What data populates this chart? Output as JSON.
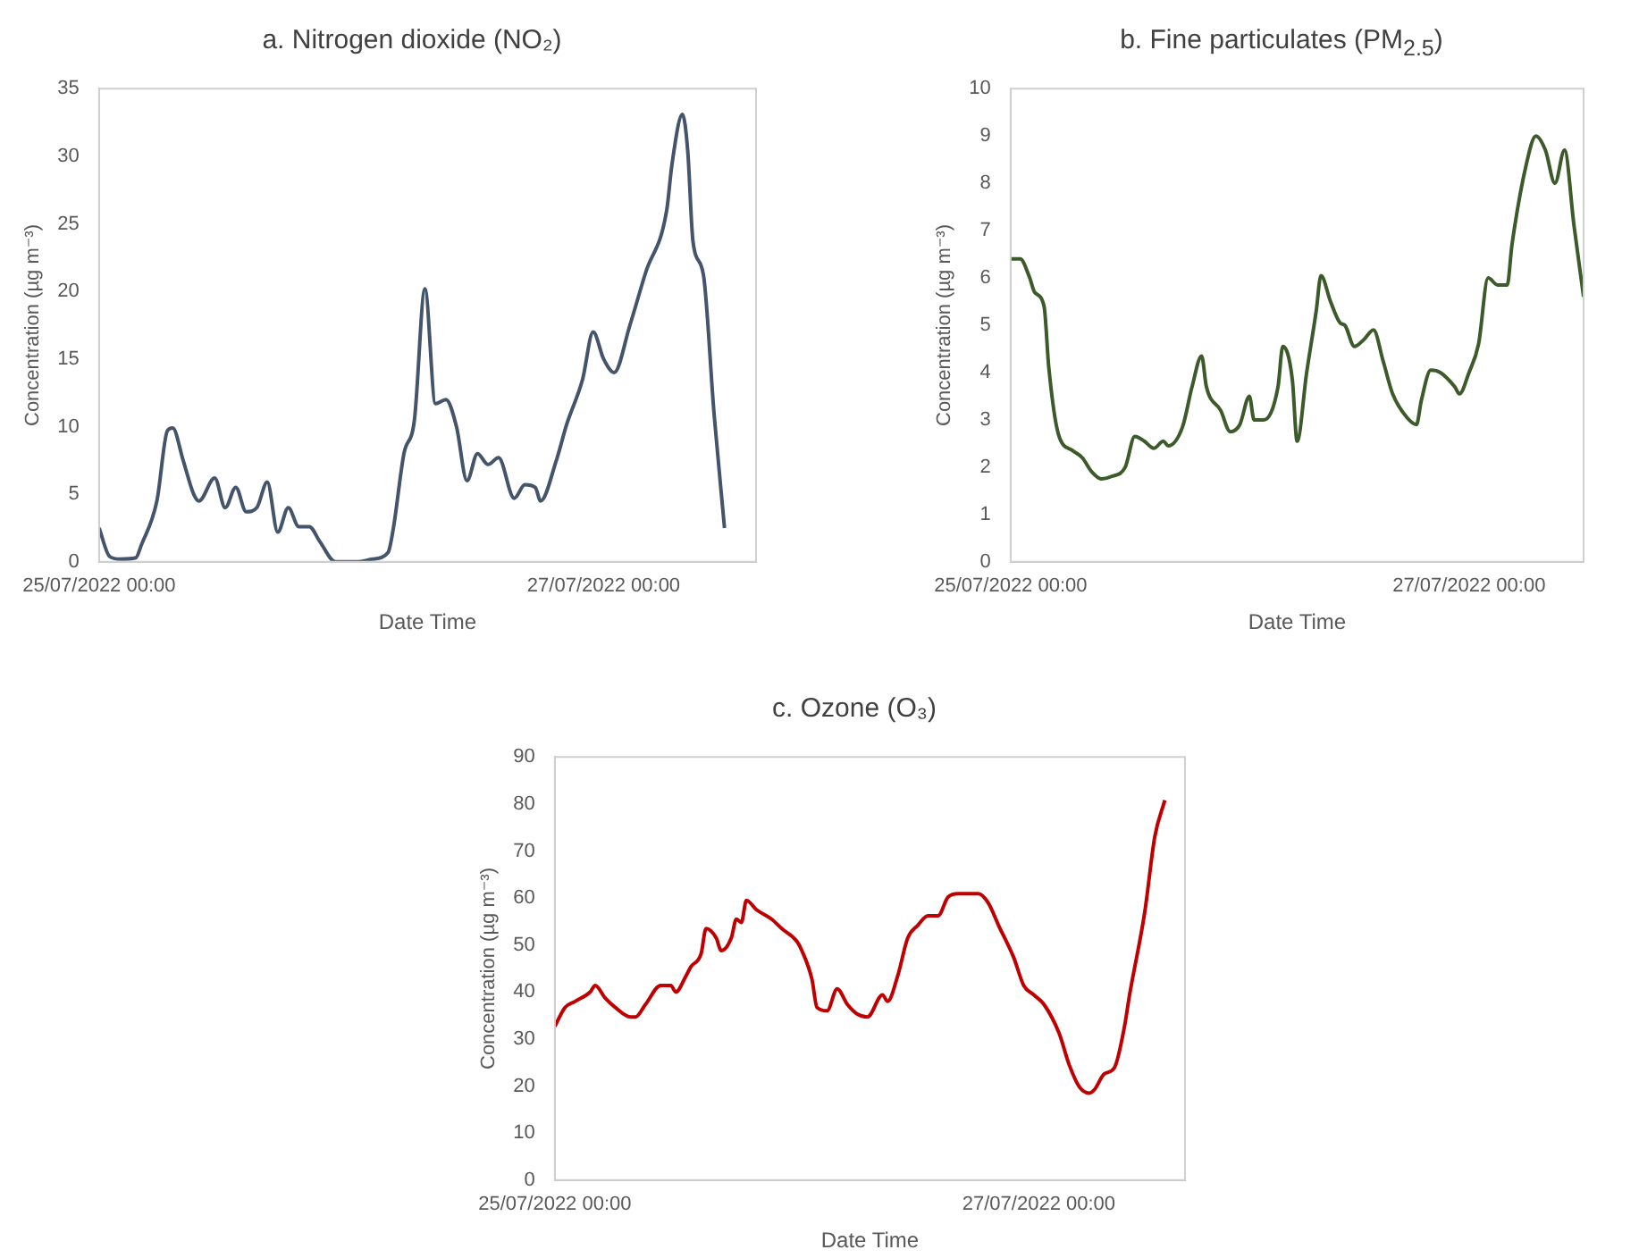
{
  "chart_data": [
    {
      "type": "line",
      "title": "a. Nitrogen dioxide (NO₂)",
      "xlabel": "Date Time",
      "ylabel": "Concentration (µg m⁻³)",
      "marker": "none",
      "line_style": "solid",
      "xlim": [
        "2022-07-25T00:00",
        "2022-07-27T14:30"
      ],
      "ylim": [
        0,
        35
      ],
      "xticks": [
        {
          "value": "2022-07-25T00:00",
          "label": "25/07/2022 00:00"
        },
        {
          "value": "2022-07-27T00:00",
          "label": "27/07/2022 00:00"
        }
      ],
      "yticks": [
        0,
        5,
        10,
        15,
        20,
        25,
        30,
        35
      ],
      "series": [
        {
          "color": "#44546a",
          "x": [
            "2022-07-25T00:00",
            "2022-07-25T01:00",
            "2022-07-25T02:00",
            "2022-07-25T03:30",
            "2022-07-25T04:00",
            "2022-07-25T05:30",
            "2022-07-25T06:30",
            "2022-07-25T07:00",
            "2022-07-25T08:00",
            "2022-07-25T09:00",
            "2022-07-25T09:30",
            "2022-07-25T11:00",
            "2022-07-25T12:00",
            "2022-07-25T13:00",
            "2022-07-25T14:00",
            "2022-07-25T15:00",
            "2022-07-25T16:00",
            "2022-07-25T17:00",
            "2022-07-25T18:00",
            "2022-07-25T19:00",
            "2022-07-25T20:00",
            "2022-07-25T21:00",
            "2022-07-25T22:30",
            "2022-07-26T00:30",
            "2022-07-26T02:00",
            "2022-07-26T03:30",
            "2022-07-26T04:00",
            "2022-07-26T05:00",
            "2022-07-26T06:00",
            "2022-07-26T07:00",
            "2022-07-26T08:00",
            "2022-07-26T09:00",
            "2022-07-26T10:00",
            "2022-07-26T11:00",
            "2022-07-26T12:00",
            "2022-07-26T13:00",
            "2022-07-26T14:00",
            "2022-07-26T15:30",
            "2022-07-26T16:30",
            "2022-07-26T17:30",
            "2022-07-26T18:00",
            "2022-07-26T19:30",
            "2022-07-26T20:30",
            "2022-07-26T22:00",
            "2022-07-26T23:00",
            "2022-07-27T00:00",
            "2022-07-27T01:00",
            "2022-07-27T02:30",
            "2022-07-27T04:00",
            "2022-07-27T06:00",
            "2022-07-27T06:30",
            "2022-07-27T07:30",
            "2022-07-27T08:00",
            "2022-07-27T08:30",
            "2022-07-27T09:30",
            "2022-07-27T10:30",
            "2022-07-27T11:30"
          ],
          "values": [
            2.5,
            0.4,
            0.2,
            0.3,
            1.2,
            4.5,
            9.7,
            9.9,
            7.5,
            5,
            4.5,
            6.2,
            4,
            5.5,
            3.7,
            4,
            5.9,
            2.2,
            4,
            2.6,
            2.6,
            1.5,
            0,
            0,
            0.2,
            0.7,
            2.5,
            8,
            10.5,
            20.2,
            11.7,
            12,
            10,
            6,
            8,
            7.2,
            7.7,
            4.7,
            5.7,
            5.5,
            4.5,
            7.5,
            10.2,
            13.5,
            17,
            15,
            14,
            17.5,
            21.4,
            26,
            29.4,
            33.1,
            30.4,
            23.7,
            21.2,
            11,
            2.5
          ]
        }
      ]
    },
    {
      "type": "line",
      "title": "b. Fine particulates (PM$_{2.5}$)",
      "xlabel": "Date Time",
      "ylabel": "Concentration (µg m⁻³)",
      "marker": "none",
      "line_style": "solid",
      "xlim": [
        "2022-07-25T00:00",
        "2022-07-27T12:00"
      ],
      "ylim": [
        0,
        10
      ],
      "xticks": [
        {
          "value": "2022-07-25T00:00",
          "label": "25/07/2022 00:00"
        },
        {
          "value": "2022-07-27T00:00",
          "label": "27/07/2022 00:00"
        }
      ],
      "yticks": [
        0,
        1,
        2,
        3,
        4,
        5,
        6,
        7,
        8,
        9,
        10
      ],
      "series": [
        {
          "color": "#3d5a2a",
          "x": [
            "2022-07-25T00:00",
            "2022-07-25T01:00",
            "2022-07-25T02:00",
            "2022-07-25T02:30",
            "2022-07-25T03:30",
            "2022-07-25T04:00",
            "2022-07-25T05:00",
            "2022-07-25T06:30",
            "2022-07-25T07:30",
            "2022-07-25T08:30",
            "2022-07-25T09:30",
            "2022-07-25T10:30",
            "2022-07-25T12:00",
            "2022-07-25T13:00",
            "2022-07-25T14:00",
            "2022-07-25T15:00",
            "2022-07-25T16:00",
            "2022-07-25T16:30",
            "2022-07-25T18:00",
            "2022-07-25T19:00",
            "2022-07-25T20:00",
            "2022-07-25T20:30",
            "2022-07-25T22:00",
            "2022-07-25T23:00",
            "2022-07-26T00:00",
            "2022-07-26T01:00",
            "2022-07-26T01:30",
            "2022-07-26T02:30",
            "2022-07-26T04:00",
            "2022-07-26T04:30",
            "2022-07-26T05:30",
            "2022-07-26T06:00",
            "2022-07-26T07:00",
            "2022-07-26T08:00",
            "2022-07-26T08:30",
            "2022-07-26T09:30",
            "2022-07-26T10:30",
            "2022-07-26T11:00",
            "2022-07-26T12:00",
            "2022-07-26T13:00",
            "2022-07-26T14:00",
            "2022-07-26T15:00",
            "2022-07-26T16:00",
            "2022-07-26T17:30",
            "2022-07-26T18:30",
            "2022-07-26T19:00",
            "2022-07-26T20:00",
            "2022-07-26T21:00",
            "2022-07-26T22:30",
            "2022-07-26T23:00",
            "2022-07-27T00:00",
            "2022-07-27T01:00",
            "2022-07-27T02:00",
            "2022-07-27T03:00",
            "2022-07-27T04:00",
            "2022-07-27T04:30",
            "2022-07-27T06:00",
            "2022-07-27T07:00",
            "2022-07-27T08:00",
            "2022-07-27T09:00",
            "2022-07-27T10:00",
            "2022-07-27T11:00",
            "2022-07-27T12:00"
          ],
          "values": [
            6.4,
            6.4,
            6.0,
            5.7,
            5.4,
            4.1,
            2.7,
            2.35,
            2.2,
            1.9,
            1.75,
            1.8,
            2.0,
            2.65,
            2.55,
            2.4,
            2.55,
            2.45,
            2.85,
            3.7,
            4.35,
            3.7,
            3.2,
            2.75,
            2.9,
            3.5,
            3.0,
            3.0,
            3.7,
            4.55,
            3.85,
            2.55,
            4.0,
            5.3,
            6.05,
            5.5,
            5.05,
            5.0,
            4.55,
            4.7,
            4.9,
            4.25,
            3.55,
            3.05,
            2.9,
            3.4,
            4.05,
            4.0,
            3.7,
            3.55,
            4.0,
            4.6,
            6.0,
            5.85,
            5.85,
            6.7,
            8.4,
            9.0,
            8.7,
            8.0,
            8.7,
            7.1,
            5.6
          ]
        }
      ]
    },
    {
      "type": "line",
      "title": "c. Ozone (O₃)",
      "xlabel": "Date Time",
      "ylabel": "Concentration (µg m⁻³)",
      "marker": "none",
      "line_style": "solid",
      "xlim": [
        "2022-07-25T00:00",
        "2022-07-27T14:30"
      ],
      "ylim": [
        0,
        90
      ],
      "xticks": [
        {
          "value": "2022-07-25T00:00",
          "label": "25/07/2022 00:00"
        },
        {
          "value": "2022-07-27T00:00",
          "label": "27/07/2022 00:00"
        }
      ],
      "yticks": [
        0,
        10,
        20,
        30,
        40,
        50,
        60,
        70,
        80,
        90
      ],
      "series": [
        {
          "color": "#c00000",
          "x": [
            "2022-07-25T00:00",
            "2022-07-25T01:00",
            "2022-07-25T02:00",
            "2022-07-25T03:30",
            "2022-07-25T04:00",
            "2022-07-25T05:00",
            "2022-07-25T06:00",
            "2022-07-25T07:30",
            "2022-07-25T08:00",
            "2022-07-25T09:00",
            "2022-07-25T10:30",
            "2022-07-25T11:30",
            "2022-07-25T12:00",
            "2022-07-25T13:00",
            "2022-07-25T13:30",
            "2022-07-25T14:30",
            "2022-07-25T15:00",
            "2022-07-25T16:00",
            "2022-07-25T16:30",
            "2022-07-25T17:30",
            "2022-07-25T18:00",
            "2022-07-25T18:30",
            "2022-07-25T19:00",
            "2022-07-25T20:00",
            "2022-07-25T21:30",
            "2022-07-25T22:30",
            "2022-07-26T00:00",
            "2022-07-26T00:30",
            "2022-07-26T01:30",
            "2022-07-26T02:00",
            "2022-07-26T03:00",
            "2022-07-26T04:00",
            "2022-07-26T05:00",
            "2022-07-26T06:00",
            "2022-07-26T07:00",
            "2022-07-26T08:30",
            "2022-07-26T09:00",
            "2022-07-26T10:00",
            "2022-07-26T11:00",
            "2022-07-26T12:00",
            "2022-07-26T13:00",
            "2022-07-26T14:00",
            "2022-07-26T15:00",
            "2022-07-26T16:00",
            "2022-07-26T18:00",
            "2022-07-26T19:00",
            "2022-07-26T20:00",
            "2022-07-26T21:30",
            "2022-07-26T22:30",
            "2022-07-26T23:30",
            "2022-07-27T00:30",
            "2022-07-27T02:00",
            "2022-07-27T03:00",
            "2022-07-27T04:00",
            "2022-07-27T05:00",
            "2022-07-27T05:30",
            "2022-07-27T06:30",
            "2022-07-27T07:30",
            "2022-07-27T08:30",
            "2022-07-27T09:00",
            "2022-07-27T10:30",
            "2022-07-27T11:30",
            "2022-07-27T12:30"
          ],
          "values": [
            32.7,
            36.7,
            38,
            40,
            41.4,
            38.7,
            36.7,
            34.7,
            34.7,
            37.4,
            41.4,
            41.4,
            40,
            43.4,
            45.4,
            48.1,
            53.5,
            51.5,
            48.8,
            51.5,
            55.5,
            54.8,
            59.5,
            57.5,
            55.5,
            53.5,
            50.8,
            48.8,
            42.7,
            36.7,
            36,
            40.7,
            37.4,
            35.3,
            34.7,
            39.4,
            38,
            43.4,
            51.5,
            54.2,
            56.2,
            56.2,
            60.2,
            60.9,
            60.9,
            58.9,
            54.2,
            47.4,
            41.4,
            39.4,
            37.4,
            31.3,
            24.6,
            19.9,
            18.5,
            19.2,
            22.6,
            23.9,
            32.7,
            39.4,
            56.9,
            73,
            80.8
          ]
        }
      ]
    }
  ]
}
